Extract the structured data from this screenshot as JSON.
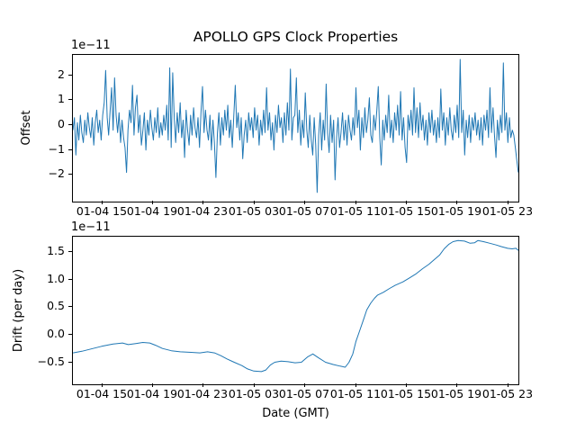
{
  "title": "APOLLO GPS Clock Properties",
  "xlabel": "Date (GMT)",
  "line_color": "#1f77b4",
  "axis_color": "#000000",
  "background_color": "#ffffff",
  "chart_data": [
    {
      "type": "line",
      "name": "offset",
      "ylabel": "Offset",
      "scale_label": "1e−11",
      "legend": "none",
      "grid": false,
      "xlim": [
        12.69,
        47.8
      ],
      "ylim": [
        -3.07,
        2.82
      ],
      "x_ticks": {
        "values": [
          15,
          19,
          23,
          27,
          31,
          35,
          39,
          43,
          47
        ],
        "labels": [
          "01-04 15",
          "01-04 19",
          "01-04 23",
          "01-05 03",
          "01-05 07",
          "01-05 11",
          "01-05 15",
          "01-05 19",
          "01-05 23"
        ]
      },
      "y_ticks": {
        "values": [
          -2,
          -1,
          0,
          1,
          2
        ],
        "labels": [
          "−2",
          "−1",
          "0",
          "1",
          "2"
        ]
      },
      "series": [
        {
          "name": "offset-noise",
          "x_start": 12.69,
          "x_step": 0.1174,
          "stroke_width": 1,
          "values": [
            -0.2,
            0.3,
            -1.2,
            0.1,
            -0.6,
            0.4,
            -0.3,
            -0.7,
            0.2,
            -0.4,
            0.5,
            -0.1,
            -0.5,
            0.3,
            -0.8,
            0.1,
            0.6,
            -0.3,
            0.2,
            -0.6,
            0.4,
            0.9,
            2.2,
            0.3,
            -0.4,
            0.6,
            1.5,
            -0.2,
            1.9,
            0.4,
            -0.3,
            0.5,
            -0.7,
            0.2,
            -0.5,
            -0.9,
            -1.9,
            -0.2,
            0.6,
            0.1,
            1.6,
            -0.4,
            0.7,
            1.2,
            -0.3,
            0.4,
            -0.8,
            -0.2,
            0.5,
            -1.0,
            0.2,
            -0.4,
            0.6,
            -0.1,
            -0.6,
            0.3,
            -0.3,
            0.7,
            -0.5,
            0.1,
            -0.4,
            0.4,
            -0.2,
            0.8,
            -0.6,
            2.3,
            -0.9,
            2.1,
            0.3,
            -0.7,
            0.5,
            -0.3,
            0.9,
            -0.5,
            0.2,
            -1.3,
            0.6,
            -0.2,
            -0.8,
            0.4,
            -0.4,
            0.7,
            -0.1,
            -0.5,
            0.3,
            -0.9,
            0.5,
            1.55,
            -0.3,
            0.6,
            -0.2,
            -0.6,
            0.4,
            -1.0,
            0.2,
            -0.7,
            -2.1,
            -0.3,
            0.5,
            -0.8,
            0.3,
            -0.4,
            0.6,
            -0.2,
            0.8,
            -0.5,
            0.2,
            -0.9,
            0.4,
            1.6,
            -0.1,
            0.5,
            -0.6,
            0.3,
            -1.35,
            -0.4,
            0.2,
            -0.7,
            0.5,
            -0.2,
            0.3,
            -0.5,
            0.7,
            -0.2,
            0.4,
            -0.8,
            0.2,
            -0.4,
            0.6,
            -0.3,
            1.5,
            -0.2,
            0.5,
            -0.6,
            0.1,
            -1.0,
            0.4,
            -0.3,
            0.8,
            -0.1,
            0.3,
            -0.7,
            0.5,
            -0.4,
            0.9,
            -0.2,
            2.25,
            -0.6,
            0.3,
            0.4,
            1.9,
            -0.3,
            0.6,
            -0.8,
            0.2,
            -0.5,
            1.3,
            -0.2,
            -0.9,
            0.4,
            -0.6,
            -1.2,
            0.3,
            -0.8,
            -2.7,
            -0.4,
            0.5,
            -1.0,
            0.2,
            -0.6,
            1.65,
            -0.3,
            -1.1,
            0.4,
            -0.7,
            0.2,
            -2.2,
            -0.5,
            0.3,
            -0.9,
            -0.3,
            0.5,
            -0.6,
            0.2,
            -0.8,
            0.4,
            -0.2,
            -0.6,
            0.3,
            -0.4,
            1.5,
            -0.1,
            0.6,
            -1.0,
            0.3,
            -0.5,
            0.7,
            -0.3,
            0.2,
            1.1,
            -0.4,
            -0.7,
            0.4,
            -0.2,
            0.6,
            1.55,
            -0.5,
            -1.6,
            0.2,
            -0.6,
            0.4,
            -0.3,
            1.2,
            -0.5,
            0.2,
            -0.7,
            0.5,
            -0.2,
            0.8,
            -0.4,
            1.35,
            -0.6,
            0.3,
            -0.9,
            -1.5,
            0.4,
            -0.2,
            0.6,
            -0.4,
            1.5,
            -0.3,
            0.7,
            -0.5,
            0.9,
            -0.2,
            0.4,
            -0.6,
            0.2,
            -0.8,
            0.5,
            -0.3,
            0.6,
            -0.4,
            0.2,
            -0.7,
            0.3,
            -0.5,
            1.45,
            -0.2,
            0.5,
            -0.8,
            0.3,
            -0.4,
            0.7,
            -0.2,
            -0.6,
            0.4,
            -0.3,
            0.8,
            -0.5,
            2.64,
            -0.3,
            0.6,
            -1.2,
            0.2,
            -0.5,
            0.4,
            -0.7,
            0.3,
            -0.2,
            0.5,
            -0.4,
            0.2,
            -0.6,
            0.3,
            -0.8,
            0.4,
            -0.2,
            0.6,
            -0.5,
            1.5,
            -0.3,
            0.7,
            -0.4,
            -1.3,
            0.2,
            -0.6,
            0.4,
            -0.3,
            2.5,
            -0.2,
            0.5,
            -0.7,
            0.3,
            -0.5,
            -0.2,
            -0.4,
            -0.9,
            -1.4,
            -1.9
          ]
        }
      ]
    },
    {
      "type": "line",
      "name": "drift",
      "ylabel": "Drift (per day)",
      "scale_label": "1e−11",
      "legend": "none",
      "grid": false,
      "xlim": [
        12.69,
        47.8
      ],
      "ylim": [
        -0.9,
        1.78
      ],
      "x_ticks": {
        "values": [
          15,
          19,
          23,
          27,
          31,
          35,
          39,
          43,
          47
        ],
        "labels": [
          "01-04 15",
          "01-04 19",
          "01-04 23",
          "01-05 03",
          "01-05 07",
          "01-05 11",
          "01-05 15",
          "01-05 19",
          "01-05 23"
        ]
      },
      "y_ticks": {
        "values": [
          -0.5,
          0.0,
          0.5,
          1.0,
          1.5
        ],
        "labels": [
          "−0.5",
          "0.0",
          "0.5",
          "1.0",
          "1.5"
        ]
      },
      "series": [
        {
          "name": "drift-curve",
          "stroke_width": 1,
          "points": [
            [
              12.7,
              -0.33
            ],
            [
              13.4,
              -0.3
            ],
            [
              14.1,
              -0.26
            ],
            [
              14.95,
              -0.21
            ],
            [
              15.85,
              -0.17
            ],
            [
              16.6,
              -0.15
            ],
            [
              17.05,
              -0.18
            ],
            [
              17.65,
              -0.16
            ],
            [
              18.2,
              -0.14
            ],
            [
              18.75,
              -0.15
            ],
            [
              19.2,
              -0.19
            ],
            [
              19.75,
              -0.25
            ],
            [
              20.45,
              -0.29
            ],
            [
              21.15,
              -0.31
            ],
            [
              22.0,
              -0.32
            ],
            [
              22.7,
              -0.33
            ],
            [
              23.3,
              -0.31
            ],
            [
              23.85,
              -0.33
            ],
            [
              24.35,
              -0.38
            ],
            [
              24.85,
              -0.44
            ],
            [
              25.4,
              -0.5
            ],
            [
              26.0,
              -0.56
            ],
            [
              26.45,
              -0.62
            ],
            [
              26.95,
              -0.66
            ],
            [
              27.55,
              -0.67
            ],
            [
              27.9,
              -0.64
            ],
            [
              28.25,
              -0.55
            ],
            [
              28.6,
              -0.5
            ],
            [
              29.1,
              -0.48
            ],
            [
              29.65,
              -0.49
            ],
            [
              30.2,
              -0.51
            ],
            [
              30.7,
              -0.5
            ],
            [
              31.2,
              -0.4
            ],
            [
              31.6,
              -0.35
            ],
            [
              32.05,
              -0.42
            ],
            [
              32.6,
              -0.5
            ],
            [
              33.2,
              -0.54
            ],
            [
              33.75,
              -0.57
            ],
            [
              34.15,
              -0.59
            ],
            [
              34.45,
              -0.5
            ],
            [
              34.75,
              -0.35
            ],
            [
              35.0,
              -0.12
            ],
            [
              35.3,
              0.08
            ],
            [
              35.6,
              0.28
            ],
            [
              35.85,
              0.45
            ],
            [
              36.15,
              0.57
            ],
            [
              36.45,
              0.66
            ],
            [
              36.7,
              0.72
            ],
            [
              37.15,
              0.77
            ],
            [
              37.65,
              0.84
            ],
            [
              38.1,
              0.9
            ],
            [
              38.7,
              0.96
            ],
            [
              39.2,
              1.03
            ],
            [
              39.7,
              1.1
            ],
            [
              40.25,
              1.2
            ],
            [
              40.75,
              1.28
            ],
            [
              41.15,
              1.36
            ],
            [
              41.6,
              1.45
            ],
            [
              41.95,
              1.56
            ],
            [
              42.3,
              1.64
            ],
            [
              42.65,
              1.69
            ],
            [
              43.05,
              1.71
            ],
            [
              43.55,
              1.7
            ],
            [
              44.0,
              1.66
            ],
            [
              44.35,
              1.67
            ],
            [
              44.6,
              1.71
            ],
            [
              45.05,
              1.69
            ],
            [
              45.55,
              1.66
            ],
            [
              46.05,
              1.63
            ],
            [
              46.45,
              1.6
            ],
            [
              46.95,
              1.57
            ],
            [
              47.3,
              1.56
            ],
            [
              47.6,
              1.57
            ],
            [
              47.8,
              1.53
            ]
          ]
        }
      ]
    }
  ]
}
